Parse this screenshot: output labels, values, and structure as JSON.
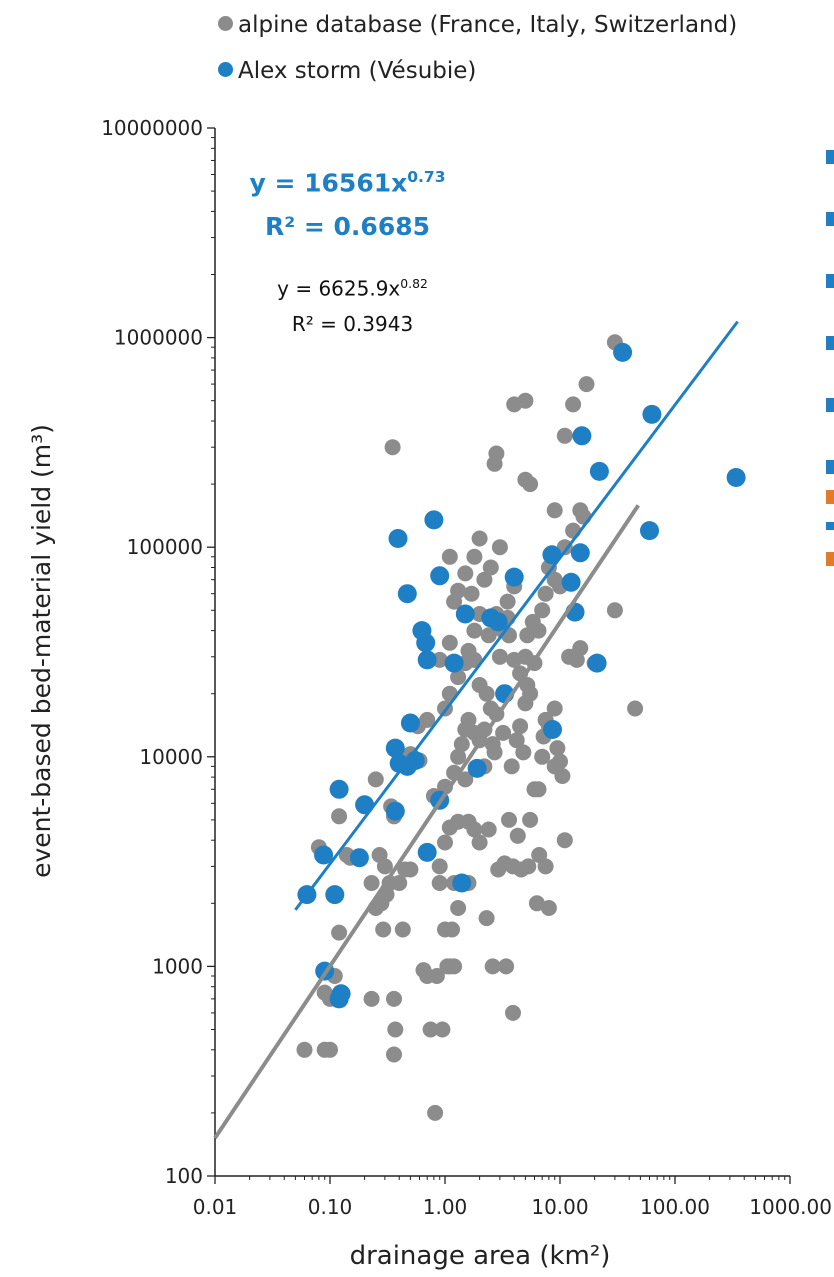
{
  "chart_data": {
    "type": "scatter",
    "title": "",
    "xlabel": "drainage area (km²)",
    "ylabel": "event-based bed-material yield (m³)",
    "xscale": "log",
    "yscale": "log",
    "xlim": [
      0.01,
      1000
    ],
    "ylim": [
      100,
      10000000
    ],
    "x_ticks": [
      "0.01",
      "0.10",
      "1.00",
      "10.00",
      "100.00",
      "1000.00"
    ],
    "y_ticks": [
      "100",
      "1000",
      "10000",
      "100000",
      "1000000",
      "10000000"
    ],
    "grid": false,
    "legend_position": "top-left",
    "series": [
      {
        "name": "alpine database (France, Italy, Switzerland)",
        "color": "#8c8c8c",
        "points": [
          [
            0.06,
            400
          ],
          [
            0.09,
            400
          ],
          [
            0.1,
            400
          ],
          [
            0.09,
            750
          ],
          [
            0.1,
            700
          ],
          [
            0.11,
            900
          ],
          [
            0.12,
            1450
          ],
          [
            0.12,
            5200
          ],
          [
            0.08,
            3700
          ],
          [
            0.14,
            3400
          ],
          [
            0.15,
            3300
          ],
          [
            0.23,
            700
          ],
          [
            0.36,
            380
          ],
          [
            0.37,
            500
          ],
          [
            0.36,
            700
          ],
          [
            0.23,
            2500
          ],
          [
            0.25,
            1900
          ],
          [
            0.27,
            3400
          ],
          [
            0.28,
            2000
          ],
          [
            0.29,
            1500
          ],
          [
            0.31,
            2200
          ],
          [
            0.33,
            2500
          ],
          [
            0.25,
            7800
          ],
          [
            0.34,
            5800
          ],
          [
            0.36,
            5200
          ],
          [
            0.43,
            1500
          ],
          [
            0.4,
            2500
          ],
          [
            0.45,
            2900
          ],
          [
            0.5,
            2900
          ],
          [
            0.35,
            300000
          ],
          [
            0.45,
            9300
          ],
          [
            0.5,
            10300
          ],
          [
            0.58,
            14000
          ],
          [
            0.6,
            9600
          ],
          [
            0.65,
            960
          ],
          [
            0.7,
            900
          ],
          [
            0.75,
            500
          ],
          [
            0.82,
            200
          ],
          [
            0.85,
            900
          ],
          [
            0.95,
            500
          ],
          [
            0.9,
            2500
          ],
          [
            1.0,
            1500
          ],
          [
            1.05,
            1000
          ],
          [
            1.1,
            1000
          ],
          [
            1.2,
            1000
          ],
          [
            1.15,
            1500
          ],
          [
            1.3,
            1900
          ],
          [
            1.2,
            2500
          ],
          [
            0.9,
            3000
          ],
          [
            1.0,
            3900
          ],
          [
            1.1,
            4600
          ],
          [
            1.3,
            4900
          ],
          [
            1.6,
            4900
          ],
          [
            1.8,
            4500
          ],
          [
            2.0,
            3900
          ],
          [
            2.3,
            1700
          ],
          [
            1.0,
            7200
          ],
          [
            1.2,
            8400
          ],
          [
            1.3,
            10000
          ],
          [
            1.4,
            11500
          ],
          [
            1.5,
            13500
          ],
          [
            1.6,
            15000
          ],
          [
            1.8,
            13000
          ],
          [
            2.0,
            12000
          ],
          [
            2.2,
            13500
          ],
          [
            1.0,
            17000
          ],
          [
            1.1,
            20000
          ],
          [
            1.3,
            24000
          ],
          [
            1.5,
            28000
          ],
          [
            1.8,
            29000
          ],
          [
            2.0,
            22000
          ],
          [
            2.3,
            20000
          ],
          [
            2.5,
            17000
          ],
          [
            2.8,
            16000
          ],
          [
            0.9,
            29000
          ],
          [
            1.1,
            35000
          ],
          [
            1.2,
            55000
          ],
          [
            1.3,
            62000
          ],
          [
            1.5,
            75000
          ],
          [
            1.7,
            60000
          ],
          [
            1.8,
            40000
          ],
          [
            2.0,
            48000
          ],
          [
            2.2,
            70000
          ],
          [
            2.5,
            80000
          ],
          [
            3.0,
            100000
          ],
          [
            1.1,
            90000
          ],
          [
            1.8,
            90000
          ],
          [
            2.0,
            110000
          ],
          [
            2.7,
            250000
          ],
          [
            2.8,
            280000
          ],
          [
            4.0,
            480000
          ],
          [
            5.0,
            500000
          ],
          [
            5.0,
            210000
          ],
          [
            5.5,
            200000
          ],
          [
            3.0,
            30000
          ],
          [
            3.2,
            40000
          ],
          [
            3.5,
            46000
          ],
          [
            3.6,
            38000
          ],
          [
            4.0,
            29000
          ],
          [
            4.5,
            25000
          ],
          [
            5.0,
            30000
          ],
          [
            5.2,
            38000
          ],
          [
            5.5,
            20000
          ],
          [
            6.0,
            28000
          ],
          [
            3.8,
            9000
          ],
          [
            4.2,
            12000
          ],
          [
            4.5,
            14000
          ],
          [
            5.0,
            18000
          ],
          [
            5.2,
            22000
          ],
          [
            3.4,
            1000
          ],
          [
            3.9,
            600
          ],
          [
            2.6,
            1000
          ],
          [
            2.9,
            2900
          ],
          [
            3.3,
            3100
          ],
          [
            3.6,
            5000
          ],
          [
            3.9,
            3000
          ],
          [
            4.3,
            4200
          ],
          [
            4.6,
            2900
          ],
          [
            5.3,
            3000
          ],
          [
            5.5,
            5000
          ],
          [
            6.3,
            2000
          ],
          [
            6.6,
            3400
          ],
          [
            7.5,
            3000
          ],
          [
            8.0,
            1900
          ],
          [
            6.0,
            7000
          ],
          [
            7.0,
            10000
          ],
          [
            7.5,
            15000
          ],
          [
            8.0,
            14000
          ],
          [
            9.0,
            9000
          ],
          [
            9.5,
            11000
          ],
          [
            10.0,
            9500
          ],
          [
            10.5,
            8100
          ],
          [
            11.0,
            4000
          ],
          [
            9.0,
            17000
          ],
          [
            5.8,
            44000
          ],
          [
            6.5,
            40000
          ],
          [
            7.0,
            50000
          ],
          [
            7.5,
            60000
          ],
          [
            8.0,
            80000
          ],
          [
            8.5,
            90000
          ],
          [
            9.0,
            70000
          ],
          [
            10.0,
            65000
          ],
          [
            12.0,
            30000
          ],
          [
            13.0,
            30000
          ],
          [
            14.0,
            29000
          ],
          [
            15.0,
            33000
          ],
          [
            9.0,
            150000
          ],
          [
            11.0,
            340000
          ],
          [
            13.0,
            480000
          ],
          [
            17.0,
            600000
          ],
          [
            11.0,
            100000
          ],
          [
            13.0,
            120000
          ],
          [
            15.0,
            150000
          ],
          [
            16.0,
            140000
          ],
          [
            30.0,
            950000
          ],
          [
            30.0,
            50000
          ],
          [
            45.0,
            17000
          ],
          [
            20.0,
            28000
          ],
          [
            4.0,
            65000
          ],
          [
            3.5,
            55000
          ],
          [
            2.8,
            48000
          ],
          [
            2.4,
            38000
          ],
          [
            1.6,
            32000
          ],
          [
            0.7,
            15000
          ],
          [
            0.8,
            6500
          ],
          [
            1.5,
            7800
          ],
          [
            2.2,
            9000
          ],
          [
            2.7,
            10500
          ],
          [
            3.2,
            13000
          ],
          [
            4.8,
            10500
          ],
          [
            6.5,
            7000
          ],
          [
            7.2,
            12500
          ],
          [
            0.3,
            3000
          ],
          [
            1.6,
            2500
          ],
          [
            2.4,
            4500
          ],
          [
            2.6,
            11500
          ]
        ]
      },
      {
        "name": "Alex storm (Vésubie)",
        "color": "#1f7fc4",
        "points": [
          [
            0.063,
            2200
          ],
          [
            0.088,
            3400
          ],
          [
            0.12,
            7000
          ],
          [
            0.11,
            2200
          ],
          [
            0.12,
            700
          ],
          [
            0.125,
            740
          ],
          [
            0.09,
            950
          ],
          [
            0.18,
            3300
          ],
          [
            0.2,
            5900
          ],
          [
            0.37,
            5500
          ],
          [
            0.37,
            11000
          ],
          [
            0.4,
            9300
          ],
          [
            0.47,
            9000
          ],
          [
            0.5,
            14500
          ],
          [
            0.55,
            9600
          ],
          [
            0.39,
            110000
          ],
          [
            0.47,
            60000
          ],
          [
            0.63,
            40000
          ],
          [
            0.68,
            35000
          ],
          [
            0.7,
            29000
          ],
          [
            0.7,
            3500
          ],
          [
            0.8,
            135000
          ],
          [
            0.9,
            73000
          ],
          [
            0.9,
            6200
          ],
          [
            1.2,
            28000
          ],
          [
            1.4,
            2500
          ],
          [
            1.5,
            48000
          ],
          [
            1.9,
            8800
          ],
          [
            2.5,
            46000
          ],
          [
            2.9,
            44000
          ],
          [
            3.3,
            20000
          ],
          [
            4.0,
            72000
          ],
          [
            8.5,
            92000
          ],
          [
            8.6,
            13500
          ],
          [
            12.5,
            68000
          ],
          [
            13.5,
            49000
          ],
          [
            15.0,
            94000
          ],
          [
            15.5,
            340000
          ],
          [
            21.0,
            28000
          ],
          [
            22.0,
            230000
          ],
          [
            35.0,
            850000
          ],
          [
            60.0,
            120000
          ],
          [
            63.0,
            430000
          ],
          [
            340.0,
            215000
          ]
        ]
      }
    ],
    "fits": [
      {
        "series": "Alex storm (Vésubie)",
        "color": "#1f7fc4",
        "coef": 16561,
        "exp": 0.73,
        "r2": 0.6685,
        "x_range": [
          0.05,
          350
        ]
      },
      {
        "series": "alpine database (France, Italy, Switzerland)",
        "color": "#8c8c8c",
        "coef": 6625.9,
        "exp": 0.82,
        "r2": 0.3943,
        "x_range": [
          0.01,
          48
        ]
      }
    ],
    "annotations": {
      "fit_blue_text": "y = 16561x",
      "fit_blue_exp": "0.73",
      "fit_blue_r2": "R² = 0.6685",
      "fit_gray_text": "y = 6625.9x",
      "fit_gray_exp": "0.82",
      "fit_gray_r2": "R² = 0.3943"
    }
  },
  "edge_colors": [
    "#1f7fc4",
    "#e07b28"
  ]
}
